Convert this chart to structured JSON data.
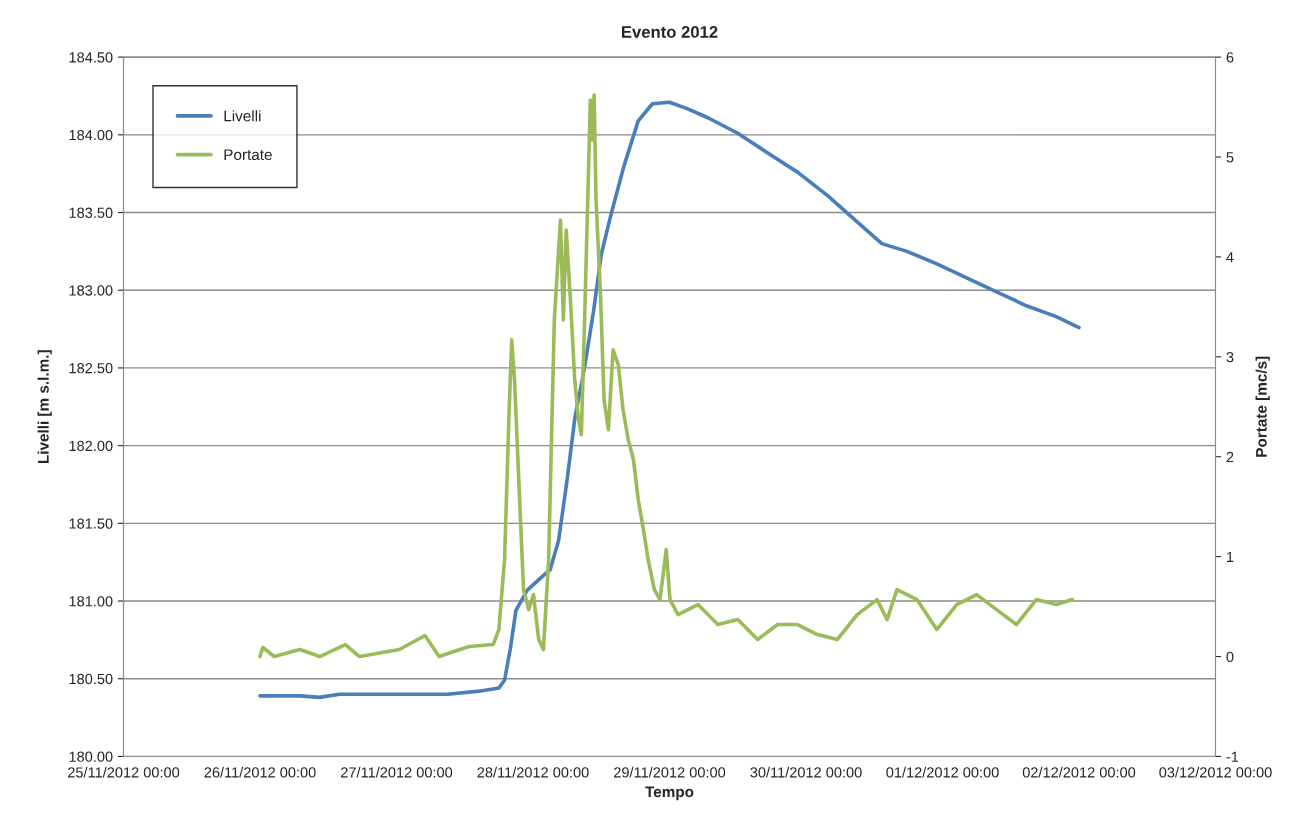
{
  "chart_data": {
    "type": "line",
    "title": "Evento 2012",
    "xlabel": "Tempo",
    "ylabel": "Livelli [m s.l.m.]",
    "y2label": "Portate [mc/s]",
    "xlim": [
      "2012-11-25T00:00",
      "2012-12-03T00:00"
    ],
    "xticks": [
      {
        "value": "2012-11-25T00:00",
        "label": "25/11/2012 00:00"
      },
      {
        "value": "2012-11-26T00:00",
        "label": "26/11/2012 00:00"
      },
      {
        "value": "2012-11-27T00:00",
        "label": "27/11/2012 00:00"
      },
      {
        "value": "2012-11-28T00:00",
        "label": "28/11/2012 00:00"
      },
      {
        "value": "2012-11-29T00:00",
        "label": "29/11/2012 00:00"
      },
      {
        "value": "2012-11-30T00:00",
        "label": "30/11/2012 00:00"
      },
      {
        "value": "2012-12-01T00:00",
        "label": "01/12/2012 00:00"
      },
      {
        "value": "2012-12-02T00:00",
        "label": "02/12/2012 00:00"
      },
      {
        "value": "2012-12-03T00:00",
        "label": "03/12/2012 00:00"
      }
    ],
    "ylim": [
      180,
      184.5
    ],
    "yticks": [
      {
        "value": 180,
        "label": "180.00"
      },
      {
        "value": 180.5,
        "label": "180.50"
      },
      {
        "value": 181,
        "label": "181.00"
      },
      {
        "value": 181.5,
        "label": "181.50"
      },
      {
        "value": 182,
        "label": "182.00"
      },
      {
        "value": 182.5,
        "label": "182.50"
      },
      {
        "value": 183,
        "label": "183.00"
      },
      {
        "value": 183.5,
        "label": "183.50"
      },
      {
        "value": 184,
        "label": "184.00"
      },
      {
        "value": 184.5,
        "label": "184.50"
      }
    ],
    "y2lim": [
      -1,
      6
    ],
    "y2ticks": [
      -1,
      0,
      1,
      2,
      3,
      4,
      5,
      6
    ],
    "grid": "y",
    "legend": "top left",
    "series": [
      {
        "name": "Livelli",
        "color": "#4a7ebb",
        "x": [
          "2012-11-26T00:00",
          "2012-11-26T07:00",
          "2012-11-26T10:30",
          "2012-11-26T14:00",
          "2012-11-27T00:30",
          "2012-11-27T09:00",
          "2012-11-27T14:30",
          "2012-11-27T18:00",
          "2012-11-27T19:00",
          "2012-11-27T20:00",
          "2012-11-27T21:00",
          "2012-11-27T23:00",
          "2012-11-28T02:00",
          "2012-11-28T03:00",
          "2012-11-28T04:30",
          "2012-11-28T06:00",
          "2012-11-28T07:20",
          "2012-11-28T09:00",
          "2012-11-28T10:40",
          "2012-11-28T12:00",
          "2012-11-28T13:40",
          "2012-11-28T16:00",
          "2012-11-28T18:30",
          "2012-11-28T21:00",
          "2012-11-29T00:00",
          "2012-11-29T03:00",
          "2012-11-29T06:45",
          "2012-11-29T12:00",
          "2012-11-29T17:00",
          "2012-11-29T22:30",
          "2012-11-30T03:45",
          "2012-11-30T09:00",
          "2012-11-30T13:20",
          "2012-11-30T17:45",
          "2012-11-30T23:00",
          "2012-12-01T04:15",
          "2012-12-01T09:30",
          "2012-12-01T14:45",
          "2012-12-01T20:00",
          "2012-12-02T00:00"
        ],
        "values": [
          180.39,
          180.39,
          180.38,
          180.4,
          180.4,
          180.4,
          180.42,
          180.44,
          180.49,
          180.69,
          180.94,
          181.07,
          181.17,
          181.2,
          181.39,
          181.78,
          182.17,
          182.49,
          182.87,
          183.23,
          183.48,
          183.8,
          184.09,
          184.2,
          184.21,
          184.17,
          184.11,
          184.01,
          183.89,
          183.76,
          183.61,
          183.44,
          183.3,
          183.25,
          183.17,
          183.08,
          182.99,
          182.9,
          182.83,
          182.76
        ]
      },
      {
        "name": "Portate",
        "color": "#9bbb59",
        "axis": "y2",
        "x": [
          "2012-11-26T00:00",
          "2012-11-26T00:30",
          "2012-11-26T02:30",
          "2012-11-26T07:00",
          "2012-11-26T10:30",
          "2012-11-26T15:00",
          "2012-11-26T17:30",
          "2012-11-27T00:30",
          "2012-11-27T05:00",
          "2012-11-27T07:30",
          "2012-11-27T12:45",
          "2012-11-27T17:00",
          "2012-11-27T18:00",
          "2012-11-27T19:00",
          "2012-11-27T19:45",
          "2012-11-27T20:15",
          "2012-11-27T20:45",
          "2012-11-27T21:30",
          "2012-11-27T22:20",
          "2012-11-27T23:15",
          "2012-11-28T00:05",
          "2012-11-28T01:00",
          "2012-11-28T01:50",
          "2012-11-28T02:45",
          "2012-11-28T03:45",
          "2012-11-28T04:50",
          "2012-11-28T05:20",
          "2012-11-28T05:50",
          "2012-11-28T06:35",
          "2012-11-28T07:20",
          "2012-11-28T08:00",
          "2012-11-28T08:30",
          "2012-11-28T09:10",
          "2012-11-28T10:05",
          "2012-11-28T10:25",
          "2012-11-28T10:45",
          "2012-11-28T11:05",
          "2012-11-28T11:50",
          "2012-11-28T12:30",
          "2012-11-28T13:15",
          "2012-11-28T14:05",
          "2012-11-28T15:00",
          "2012-11-28T15:50",
          "2012-11-28T16:45",
          "2012-11-28T17:40",
          "2012-11-28T18:30",
          "2012-11-28T19:25",
          "2012-11-28T20:15",
          "2012-11-28T21:20",
          "2012-11-28T22:20",
          "2012-11-28T23:25",
          "2012-11-29T00:05",
          "2012-11-29T01:30",
          "2012-11-29T05:00",
          "2012-11-29T08:30",
          "2012-11-29T12:00",
          "2012-11-29T15:30",
          "2012-11-29T19:00",
          "2012-11-29T22:30",
          "2012-11-30T02:00",
          "2012-11-30T05:30",
          "2012-11-30T09:00",
          "2012-11-30T12:30",
          "2012-11-30T14:15",
          "2012-11-30T16:00",
          "2012-11-30T19:30",
          "2012-11-30T23:00",
          "2012-12-01T02:30",
          "2012-12-01T06:00",
          "2012-12-01T09:30",
          "2012-12-01T13:00",
          "2012-12-01T16:30",
          "2012-12-01T20:00",
          "2012-12-01T22:50"
        ],
        "values": [
          0.0,
          0.09,
          0.0,
          0.07,
          0.0,
          0.12,
          0.0,
          0.07,
          0.21,
          0.0,
          0.1,
          0.12,
          0.27,
          0.97,
          2.37,
          3.17,
          2.77,
          1.77,
          0.67,
          0.47,
          0.62,
          0.17,
          0.07,
          0.97,
          3.37,
          4.37,
          3.37,
          4.27,
          3.57,
          2.77,
          2.37,
          2.22,
          3.57,
          5.57,
          5.17,
          5.62,
          4.57,
          3.67,
          2.57,
          2.27,
          3.07,
          2.92,
          2.47,
          2.17,
          1.97,
          1.57,
          1.27,
          0.97,
          0.67,
          0.57,
          1.07,
          0.57,
          0.42,
          0.52,
          0.32,
          0.37,
          0.17,
          0.32,
          0.32,
          0.22,
          0.17,
          0.42,
          0.57,
          0.37,
          0.67,
          0.57,
          0.27,
          0.52,
          0.62,
          0.47,
          0.32,
          0.57,
          0.52,
          0.57
        ]
      }
    ]
  }
}
